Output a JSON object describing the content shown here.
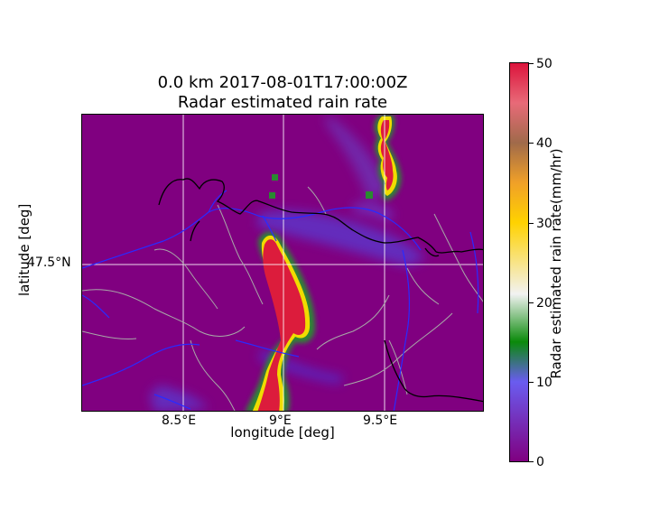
{
  "title_line1": "0.0 km 2017-08-01T17:00:00Z",
  "title_line2": "Radar estimated rain rate",
  "xlabel": "longitude [deg]",
  "ylabel": "latitude [deg]",
  "x_ticks": [
    "8.5°E",
    "9°E",
    "9.5°E"
  ],
  "y_ticks": [
    "47.5°N"
  ],
  "colorbar": {
    "label": "Radar estimated rain rate(mm/hr)",
    "ticks": [
      "0",
      "10",
      "20",
      "30",
      "40",
      "50"
    ],
    "range": [
      0,
      50
    ]
  },
  "colors": {
    "background": "#800080",
    "rivers": "#2a2aff",
    "country_borders": "#000000",
    "admin_borders": "#a8a8a8",
    "gridlines": "#ffffff"
  },
  "map_extent": {
    "lon_range": [
      8.0,
      10.0
    ],
    "lat_range": [
      47.15,
      47.83
    ],
    "projection": "PlateCarree",
    "gridlines": true
  }
}
